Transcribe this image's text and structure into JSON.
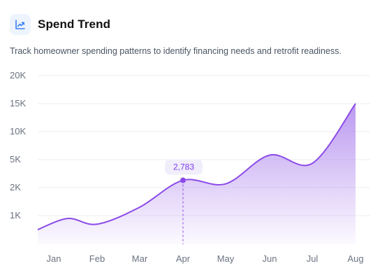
{
  "header": {
    "title": "Spend Trend",
    "subtitle": "Track homeowner spending patterns to identify financing needs and retrofit readiness.",
    "icon": "trend-chart-icon"
  },
  "colors": {
    "line": "#8b4be8",
    "fill": "#a678ec",
    "grid": "#eceef2",
    "icon": "#3b82f6",
    "icon_bg": "#eef4fd",
    "callout_bg": "#f1eefc",
    "callout_text": "#7c3aed"
  },
  "chart_data": {
    "type": "area",
    "title": "Spend Trend",
    "categories": [
      "Jan",
      "Feb",
      "Mar",
      "Apr",
      "May",
      "Jun",
      "Jul",
      "Aug"
    ],
    "y_tick_labels": [
      "1K",
      "2K",
      "5K",
      "10K",
      "15K",
      "20K"
    ],
    "y_tick_values": [
      1000,
      2000,
      5000,
      10000,
      15000,
      20000
    ],
    "values": [
      900,
      700,
      1300,
      2783,
      2400,
      5800,
      4600,
      15000
    ],
    "grid": true,
    "highlight": {
      "category": "Apr",
      "label": "2,783"
    }
  }
}
